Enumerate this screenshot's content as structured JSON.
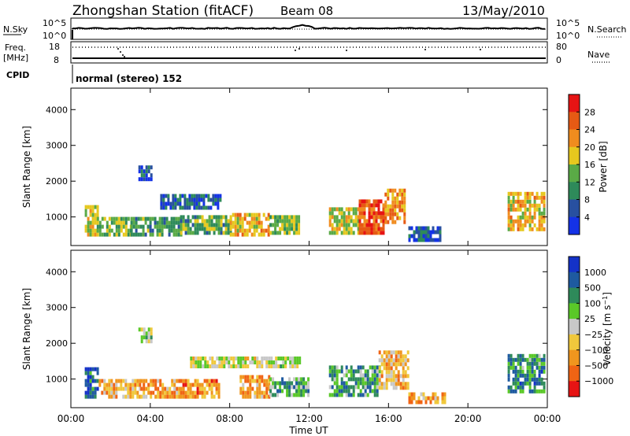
{
  "header": {
    "title": "Zhongshan Station (fitACF)",
    "beam": "Beam 08",
    "date": "13/May/2010"
  },
  "top_panels": {
    "nsky_label": "N.Sky",
    "nsky_ticks": [
      "10^5",
      "10^0"
    ],
    "nsearch_label": "N.Search",
    "nsearch_ticks": [
      "10^5",
      "10^0"
    ],
    "freq_label": "Freq.",
    "freq_unit": "[MHz]",
    "freq_ticks": [
      "18",
      "8"
    ],
    "nave_label": "Nave",
    "nave_ticks": [
      "80",
      "0"
    ],
    "cpid_label": "CPID",
    "cpid_text": "normal (stereo) 152"
  },
  "time_axis": {
    "label": "Time UT",
    "ticks": [
      "00:00",
      "04:00",
      "08:00",
      "12:00",
      "16:00",
      "20:00",
      "00:00"
    ]
  },
  "colors": {
    "power": [
      "#1432e6",
      "#2850a0",
      "#2e8a5a",
      "#5aaa46",
      "#e6c81e",
      "#f08c1e",
      "#e65a14",
      "#e61414"
    ],
    "velocity": [
      "#e61414",
      "#f06414",
      "#f0961e",
      "#f0c83c",
      "#c8c8c8",
      "#5ac828",
      "#2e8a5a",
      "#1e5aa0",
      "#1432c8"
    ]
  },
  "chart_data": [
    {
      "type": "heatmap",
      "name": "power",
      "ylabel": "Slant Range [km]",
      "xlabel": "",
      "ylim": [
        200,
        4600
      ],
      "xlim_hours": [
        0,
        24
      ],
      "yticks": [
        "1000",
        "2000",
        "3000",
        "4000"
      ],
      "colorbar": {
        "label": "Power [dB]",
        "ticks": [
          "4",
          "8",
          "12",
          "16",
          "20",
          "24",
          "28"
        ],
        "range": [
          0,
          32
        ]
      },
      "regions": [
        {
          "t": [
            0.7,
            1.3
          ],
          "r": [
            450,
            1300
          ],
          "level": 0.55
        },
        {
          "t": [
            1.3,
            3.0
          ],
          "r": [
            450,
            900
          ],
          "level": 0.45
        },
        {
          "t": [
            3.0,
            5.5
          ],
          "r": [
            450,
            1000
          ],
          "level": 0.35
        },
        {
          "t": [
            3.4,
            4.0
          ],
          "r": [
            2000,
            2400
          ],
          "level": 0.15
        },
        {
          "t": [
            4.5,
            7.5
          ],
          "r": [
            1200,
            1600
          ],
          "level": 0.2
        },
        {
          "t": [
            5.5,
            8.0
          ],
          "r": [
            500,
            1000
          ],
          "level": 0.4
        },
        {
          "t": [
            8.0,
            10.0
          ],
          "r": [
            450,
            1100
          ],
          "level": 0.65
        },
        {
          "t": [
            10.0,
            11.5
          ],
          "r": [
            500,
            1000
          ],
          "level": 0.45
        },
        {
          "t": [
            13.0,
            14.5
          ],
          "r": [
            500,
            1200
          ],
          "level": 0.55
        },
        {
          "t": [
            14.5,
            15.8
          ],
          "r": [
            500,
            1400
          ],
          "level": 0.82
        },
        {
          "t": [
            15.8,
            16.8
          ],
          "r": [
            800,
            1700
          ],
          "level": 0.7
        },
        {
          "t": [
            17.0,
            18.6
          ],
          "r": [
            300,
            650
          ],
          "level": 0.18
        },
        {
          "t": [
            22.0,
            23.8
          ],
          "r": [
            600,
            1700
          ],
          "level": 0.6
        }
      ]
    },
    {
      "type": "heatmap",
      "name": "velocity",
      "ylabel": "Slant Range [km]",
      "xlabel": "Time UT",
      "ylim": [
        200,
        4600
      ],
      "xlim_hours": [
        0,
        24
      ],
      "yticks": [
        "1000",
        "2000",
        "3000",
        "4000"
      ],
      "colorbar": {
        "label": "Velocity [m s^-1]",
        "ticks": [
          "1000",
          "500",
          "100",
          "25",
          "−25",
          "−100",
          "−500",
          "−1000"
        ],
        "range": [
          -1000,
          1000
        ]
      },
      "regions": [
        {
          "t": [
            0.7,
            1.4
          ],
          "r": [
            450,
            1300
          ],
          "level": 0.8
        },
        {
          "t": [
            1.4,
            3.5
          ],
          "r": [
            450,
            900
          ],
          "level": 0.35
        },
        {
          "t": [
            3.5,
            5.5
          ],
          "r": [
            450,
            1000
          ],
          "level": 0.3
        },
        {
          "t": [
            3.4,
            4.0
          ],
          "r": [
            2000,
            2400
          ],
          "level": 0.55
        },
        {
          "t": [
            5.5,
            7.5
          ],
          "r": [
            450,
            900
          ],
          "level": 0.25
        },
        {
          "t": [
            6.0,
            11.5
          ],
          "r": [
            1300,
            1600
          ],
          "level": 0.5
        },
        {
          "t": [
            8.5,
            10.0
          ],
          "r": [
            450,
            1100
          ],
          "level": 0.3
        },
        {
          "t": [
            10.0,
            12.0
          ],
          "r": [
            500,
            1000
          ],
          "level": 0.65
        },
        {
          "t": [
            13.0,
            15.5
          ],
          "r": [
            500,
            1300
          ],
          "level": 0.7
        },
        {
          "t": [
            15.5,
            17.0
          ],
          "r": [
            700,
            1700
          ],
          "level": 0.35
        },
        {
          "t": [
            17.0,
            18.8
          ],
          "r": [
            300,
            600
          ],
          "level": 0.3
        },
        {
          "t": [
            22.0,
            23.8
          ],
          "r": [
            600,
            1600
          ],
          "level": 0.72
        }
      ]
    }
  ]
}
